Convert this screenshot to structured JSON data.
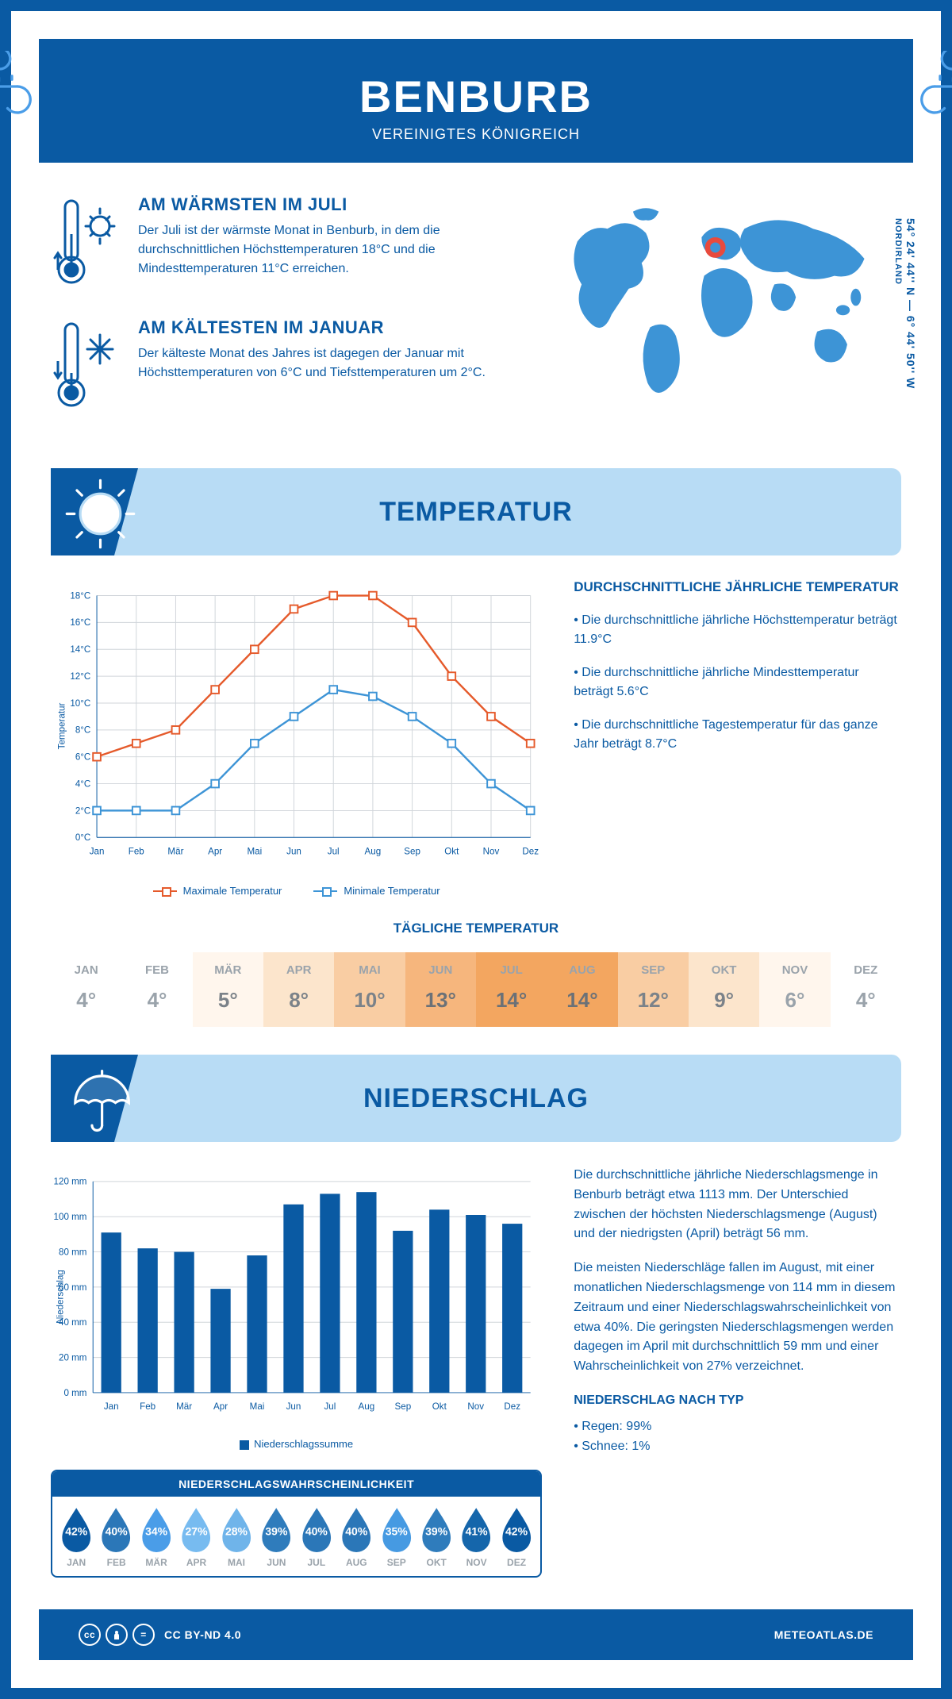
{
  "header": {
    "title": "BENBURB",
    "subtitle": "VEREINIGTES KÖNIGREICH"
  },
  "coords": {
    "lat": "54° 24' 44'' N",
    "lon": "6° 44' 50'' W",
    "region": "NORDIRLAND"
  },
  "facts": {
    "warm": {
      "title": "AM WÄRMSTEN IM JULI",
      "text": "Der Juli ist der wärmste Monat in Benburb, in dem die durchschnittlichen Höchsttemperaturen 18°C und die Mindesttemperaturen 11°C erreichen."
    },
    "cold": {
      "title": "AM KÄLTESTEN IM JANUAR",
      "text": "Der kälteste Monat des Jahres ist dagegen der Januar mit Höchsttemperaturen von 6°C und Tiefsttemperaturen um 2°C."
    }
  },
  "sections": {
    "temp": "TEMPERATUR",
    "precip": "NIEDERSCHLAG"
  },
  "temp_info": {
    "heading": "DURCHSCHNITTLICHE JÄHRLICHE TEMPERATUR",
    "bullet1": "• Die durchschnittliche jährliche Höchsttemperatur beträgt 11.9°C",
    "bullet2": "• Die durchschnittliche jährliche Mindesttemperatur beträgt 5.6°C",
    "bullet3": "• Die durchschnittliche Tagestemperatur für das ganze Jahr beträgt 8.7°C"
  },
  "temp_chart": {
    "type": "line",
    "months": [
      "Jan",
      "Feb",
      "Mär",
      "Apr",
      "Mai",
      "Jun",
      "Jul",
      "Aug",
      "Sep",
      "Okt",
      "Nov",
      "Dez"
    ],
    "series_max": {
      "label": "Maximale Temperatur",
      "color": "#e55a2b",
      "values": [
        6,
        7,
        8,
        11,
        14,
        17,
        18,
        18,
        16,
        12,
        9,
        7
      ]
    },
    "series_min": {
      "label": "Minimale Temperatur",
      "color": "#3d94d6",
      "values": [
        2,
        2,
        2,
        4,
        7,
        9,
        11,
        10.5,
        9,
        7,
        4,
        2
      ]
    },
    "ylabel": "Temperatur",
    "ylim": [
      0,
      18
    ],
    "ytick_step": 2,
    "grid_color": "#d0d5da",
    "line_width": 2.5,
    "marker_size": 5
  },
  "daily_temp": {
    "heading": "TÄGLICHE TEMPERATUR",
    "months": [
      "JAN",
      "FEB",
      "MÄR",
      "APR",
      "MAI",
      "JUN",
      "JUL",
      "AUG",
      "SEP",
      "OKT",
      "NOV",
      "DEZ"
    ],
    "values": [
      "4°",
      "4°",
      "5°",
      "8°",
      "10°",
      "13°",
      "14°",
      "14°",
      "12°",
      "9°",
      "6°",
      "4°"
    ],
    "bg_colors": [
      "#ffffff",
      "#ffffff",
      "#fff6ed",
      "#fce5cc",
      "#f9cda3",
      "#f6b67d",
      "#f3a660",
      "#f3a660",
      "#f9cda3",
      "#fce5cc",
      "#fff6ed",
      "#ffffff"
    ],
    "text_colors": [
      "#9aa3ab",
      "#9aa3ab",
      "#7b8289",
      "#7b8289",
      "#7b8289",
      "#6b7177",
      "#6b7177",
      "#6b7177",
      "#7b8289",
      "#7b8289",
      "#9aa3ab",
      "#9aa3ab"
    ]
  },
  "precip_chart": {
    "type": "bar",
    "months": [
      "Jan",
      "Feb",
      "Mär",
      "Apr",
      "Mai",
      "Jun",
      "Jul",
      "Aug",
      "Sep",
      "Okt",
      "Nov",
      "Dez"
    ],
    "values": [
      91,
      82,
      80,
      59,
      78,
      107,
      113,
      114,
      92,
      104,
      101,
      96
    ],
    "ylabel": "Niederschlag",
    "ylim": [
      0,
      120
    ],
    "ytick_step": 20,
    "bar_color": "#0a5aa3",
    "grid_color": "#d0d5da",
    "bar_width": 0.55,
    "legend": "Niederschlagssumme"
  },
  "precip_text": {
    "p1": "Die durchschnittliche jährliche Niederschlagsmenge in Benburb beträgt etwa 1113 mm. Der Unterschied zwischen der höchsten Niederschlagsmenge (August) und der niedrigsten (April) beträgt 56 mm.",
    "p2": "Die meisten Niederschläge fallen im August, mit einer monatlichen Niederschlagsmenge von 114 mm in diesem Zeitraum und einer Niederschlagswahrscheinlichkeit von etwa 40%. Die geringsten Niederschlagsmengen werden dagegen im April mit durchschnittlich 59 mm und einer Wahrscheinlichkeit von 27% verzeichnet.",
    "type_heading": "NIEDERSCHLAG NACH TYP",
    "type1": "• Regen: 99%",
    "type2": "• Schnee: 1%"
  },
  "probability": {
    "heading": "NIEDERSCHLAGSWAHRSCHEINLICHKEIT",
    "months": [
      "JAN",
      "FEB",
      "MÄR",
      "APR",
      "MAI",
      "JUN",
      "JUL",
      "AUG",
      "SEP",
      "OKT",
      "NOV",
      "DEZ"
    ],
    "values": [
      "42%",
      "40%",
      "34%",
      "27%",
      "28%",
      "39%",
      "40%",
      "40%",
      "35%",
      "39%",
      "41%",
      "42%"
    ],
    "drop_colors": [
      "#0a5aa3",
      "#2b77b8",
      "#4a9de8",
      "#77bbf0",
      "#6fb4ea",
      "#2f7cbc",
      "#2b77b8",
      "#2b77b8",
      "#469ae2",
      "#2f7cbc",
      "#1566ab",
      "#0a5aa3"
    ]
  },
  "footer": {
    "license": "CC BY-ND 4.0",
    "brand": "METEOATLAS.DE"
  },
  "colors": {
    "primary": "#0a5aa3",
    "light_blue": "#b8dcf5",
    "sky_blue": "#3d94d6",
    "orange": "#e55a2b"
  }
}
